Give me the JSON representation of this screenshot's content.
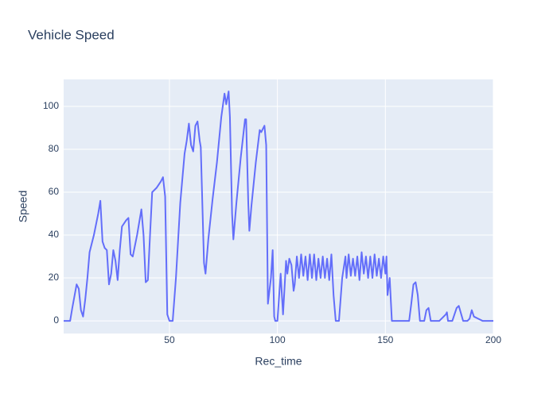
{
  "chart_data": {
    "type": "line",
    "title": "Vehicle Speed",
    "x_label": "Rec_time",
    "y_label": "Speed",
    "color": "#636efa",
    "grid": true,
    "xlim": [
      1,
      200
    ],
    "ylim": [
      -5.9,
      112.6
    ],
    "xticks": [
      50,
      100,
      150,
      200
    ],
    "yticks": [
      0,
      20,
      40,
      60,
      80,
      100
    ],
    "x": [
      1,
      4,
      5,
      7,
      8,
      9,
      10,
      11,
      12,
      13,
      15,
      17,
      18,
      19,
      20,
      21,
      22,
      23,
      24,
      25,
      26,
      27,
      28,
      30,
      31,
      32,
      33,
      35,
      37,
      38,
      39,
      40,
      41,
      42,
      44,
      46,
      47,
      48,
      49,
      50,
      51.5,
      53,
      55,
      57,
      58,
      59,
      60,
      61,
      62,
      63,
      64,
      64.5,
      66,
      66.7,
      68,
      70,
      72,
      74,
      75.5,
      76.3,
      77.4,
      78,
      79,
      79.6,
      81,
      83,
      85,
      85.5,
      86.5,
      87,
      88,
      90,
      91.8,
      92.5,
      93,
      94,
      94.8,
      95.6,
      97,
      97.8,
      98.5,
      99,
      100,
      101.5,
      102.6,
      104,
      104.6,
      105.5,
      106.5,
      107.5,
      108,
      109,
      110,
      111,
      112,
      113,
      114,
      115,
      116,
      117,
      118,
      119,
      120,
      121,
      122,
      123,
      124,
      125,
      126,
      127,
      128.5,
      130,
      131.5,
      132,
      133,
      134,
      135,
      136,
      137,
      138,
      139,
      140,
      141,
      142,
      143,
      144,
      145,
      146,
      147,
      148,
      149,
      150,
      150.5,
      151,
      152,
      153,
      161,
      162,
      163,
      164,
      165,
      166,
      168,
      169,
      170,
      171,
      175,
      178,
      178.5,
      179,
      181,
      183,
      184,
      186,
      188,
      189,
      190,
      191,
      193,
      195,
      200
    ],
    "values": [
      0,
      0,
      6,
      17,
      15,
      5,
      2,
      10,
      20,
      32,
      40,
      50,
      56,
      37,
      34,
      33,
      17,
      22,
      33,
      28,
      19,
      33,
      44,
      47,
      48,
      31,
      30,
      40,
      52,
      40,
      18,
      19,
      40,
      60,
      62,
      65,
      67,
      58,
      3,
      0,
      0,
      20,
      55,
      78,
      84,
      92,
      82,
      79,
      91,
      93,
      84,
      81,
      27,
      22,
      38,
      57,
      74,
      95,
      106,
      101,
      107,
      95,
      50,
      38,
      55,
      76,
      94,
      94,
      55,
      42,
      54,
      74,
      89,
      88,
      89,
      91,
      82,
      8,
      20,
      33,
      2,
      0,
      0,
      22,
      3,
      28,
      22,
      29,
      26,
      14,
      17,
      30,
      20,
      31,
      21,
      30,
      19,
      31,
      20,
      31,
      19,
      29,
      20,
      30,
      20,
      29,
      19,
      31,
      12,
      0,
      0,
      20,
      30,
      20,
      31,
      21,
      29,
      21,
      30,
      19,
      32,
      22,
      30,
      20,
      30,
      20,
      31,
      21,
      29,
      20,
      30,
      22,
      30,
      12,
      20,
      0,
      0,
      8,
      17,
      18,
      12,
      0,
      0,
      5,
      6,
      0,
      0,
      3,
      4,
      0,
      0,
      6,
      7,
      0,
      0,
      1,
      5,
      2,
      1,
      0,
      0
    ]
  }
}
